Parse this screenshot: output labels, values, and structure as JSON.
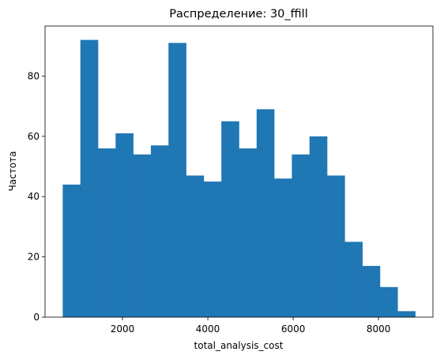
{
  "chart_data": {
    "type": "bar",
    "title": "Распределение: 30_ffill",
    "xlabel": "total_analysis_cost",
    "ylabel": "Частота",
    "bin_edges": [
      600,
      1013,
      1426,
      1839,
      2252,
      2665,
      3078,
      3491,
      3904,
      4317,
      4730,
      5143,
      5556,
      5969,
      6382,
      6795,
      7208,
      7621,
      8034,
      8447,
      8860
    ],
    "values": [
      44,
      92,
      56,
      61,
      54,
      57,
      91,
      47,
      45,
      65,
      56,
      69,
      46,
      54,
      60,
      47,
      25,
      17,
      10,
      2
    ],
    "xlim": [
      185,
      9275
    ],
    "ylim": [
      0,
      96.6
    ],
    "xticks": [
      2000,
      4000,
      6000,
      8000
    ],
    "yticks": [
      0,
      20,
      40,
      60,
      80
    ],
    "bar_color": "#1f77b4",
    "grid": false,
    "legend": "none"
  }
}
